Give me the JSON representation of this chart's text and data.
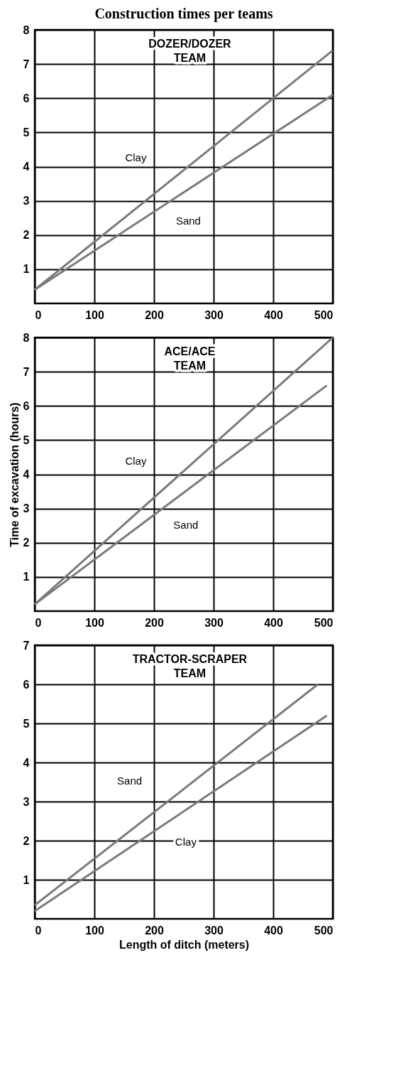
{
  "chart_data": [
    {
      "type": "line",
      "title": "Construction times per teams",
      "annotations": [
        "DOZER/DOZER\nTEAM"
      ],
      "xlim": [
        0,
        500
      ],
      "xticks": [
        0,
        100,
        200,
        300,
        400,
        500
      ],
      "ylim": [
        0,
        8
      ],
      "yticks": [
        1,
        2,
        3,
        4,
        5,
        6,
        7,
        8
      ],
      "grid": true,
      "series": [
        {
          "name": "Clay",
          "color": "#7a7a7a",
          "x": [
            0,
            500
          ],
          "values": [
            0.4,
            7.4
          ]
        },
        {
          "name": "Sand",
          "color": "#7a7a7a",
          "x": [
            0,
            500
          ],
          "values": [
            0.4,
            6.1
          ]
        }
      ]
    },
    {
      "type": "line",
      "ylabel": "Time of excavation (hours)",
      "annotations": [
        "ACE/ACE\nTEAM"
      ],
      "xlim": [
        0,
        500
      ],
      "xticks": [
        0,
        100,
        200,
        300,
        400,
        500
      ],
      "ylim": [
        0,
        8
      ],
      "yticks": [
        1,
        2,
        3,
        4,
        5,
        6,
        7,
        8
      ],
      "grid": true,
      "series": [
        {
          "name": "Clay",
          "color": "#7a7a7a",
          "x": [
            0,
            500
          ],
          "values": [
            0.2,
            8.0
          ]
        },
        {
          "name": "Sand",
          "color": "#7a7a7a",
          "x": [
            0,
            490
          ],
          "values": [
            0.2,
            6.6
          ]
        }
      ]
    },
    {
      "type": "line",
      "xlabel": "Length of ditch (meters)",
      "annotations": [
        "TRACTOR-SCRAPER\nTEAM"
      ],
      "xlim": [
        0,
        500
      ],
      "xticks": [
        0,
        100,
        200,
        300,
        400,
        500
      ],
      "ylim": [
        0,
        7
      ],
      "yticks": [
        1,
        2,
        3,
        4,
        5,
        6,
        7
      ],
      "grid": true,
      "series": [
        {
          "name": "Sand",
          "color": "#7a7a7a",
          "x": [
            0,
            475
          ],
          "values": [
            0.35,
            6.0
          ]
        },
        {
          "name": "Clay",
          "color": "#7a7a7a",
          "x": [
            0,
            490
          ],
          "values": [
            0.2,
            5.2
          ]
        }
      ]
    }
  ]
}
